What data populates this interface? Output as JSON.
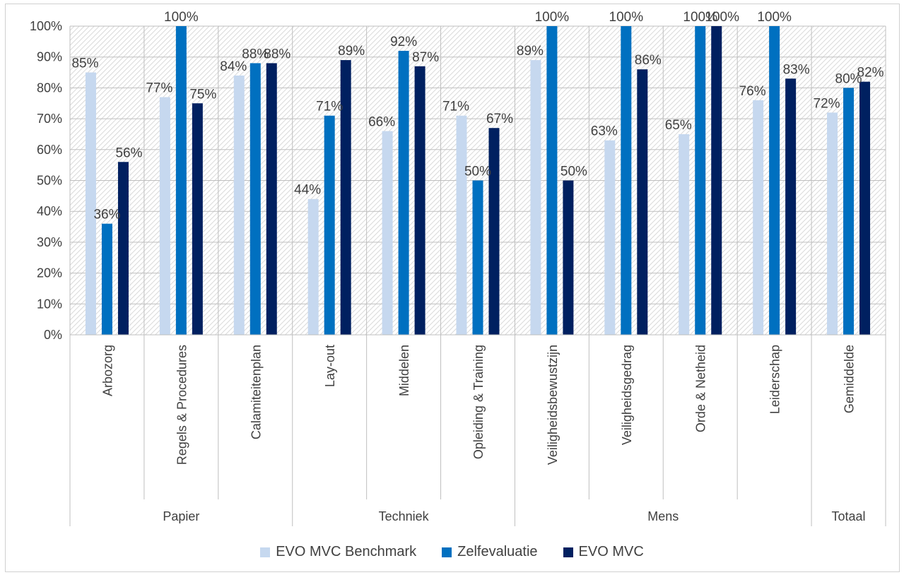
{
  "chart_data": {
    "type": "bar",
    "title": "",
    "xlabel": "",
    "ylabel": "",
    "ylim": [
      0,
      100
    ],
    "y_ticks": [
      "0%",
      "10%",
      "20%",
      "30%",
      "40%",
      "50%",
      "60%",
      "70%",
      "80%",
      "90%",
      "100%"
    ],
    "categories": [
      "Arbozorg",
      "Regels & Procedures",
      "Calamiteitenplan",
      "Lay-out",
      "Middelen",
      "Opleiding & Training",
      "Veiligheidsbewustzijn",
      "Veiligheidsgedrag",
      "Orde & Netheid",
      "Leiderschap",
      "Gemiddelde"
    ],
    "groups": [
      {
        "name": "Papier",
        "count": 3
      },
      {
        "name": "Techniek",
        "count": 3
      },
      {
        "name": "Mens",
        "count": 4
      },
      {
        "name": "Totaal",
        "count": 1
      }
    ],
    "series": [
      {
        "name": "EVO MVC Benchmark",
        "color": "#c6d8ef",
        "values": [
          85,
          77,
          84,
          44,
          66,
          71,
          89,
          63,
          65,
          76,
          72
        ],
        "labels": [
          "85%",
          "77%",
          "84%",
          "44%",
          "66%",
          "71%",
          "89%",
          "63%",
          "65%",
          "76%",
          "72%"
        ]
      },
      {
        "name": "Zelfevaluatie",
        "color": "#0070c0",
        "values": [
          36,
          100,
          88,
          71,
          92,
          50,
          100,
          100,
          100,
          100,
          80
        ],
        "labels": [
          "36%",
          "100%",
          "88%",
          "71%",
          "92%",
          "50%",
          "100%",
          "100%",
          "100%",
          "100%",
          "80%"
        ]
      },
      {
        "name": "EVO MVC",
        "color": "#002060",
        "values": [
          56,
          75,
          88,
          89,
          87,
          67,
          50,
          86,
          100,
          83,
          82
        ],
        "labels": [
          "56%",
          "75%",
          "88%",
          "89%",
          "87%",
          "67%",
          "50%",
          "86%",
          "100%",
          "83%",
          "82%"
        ]
      }
    ],
    "grid": true,
    "legend_position": "bottom"
  }
}
